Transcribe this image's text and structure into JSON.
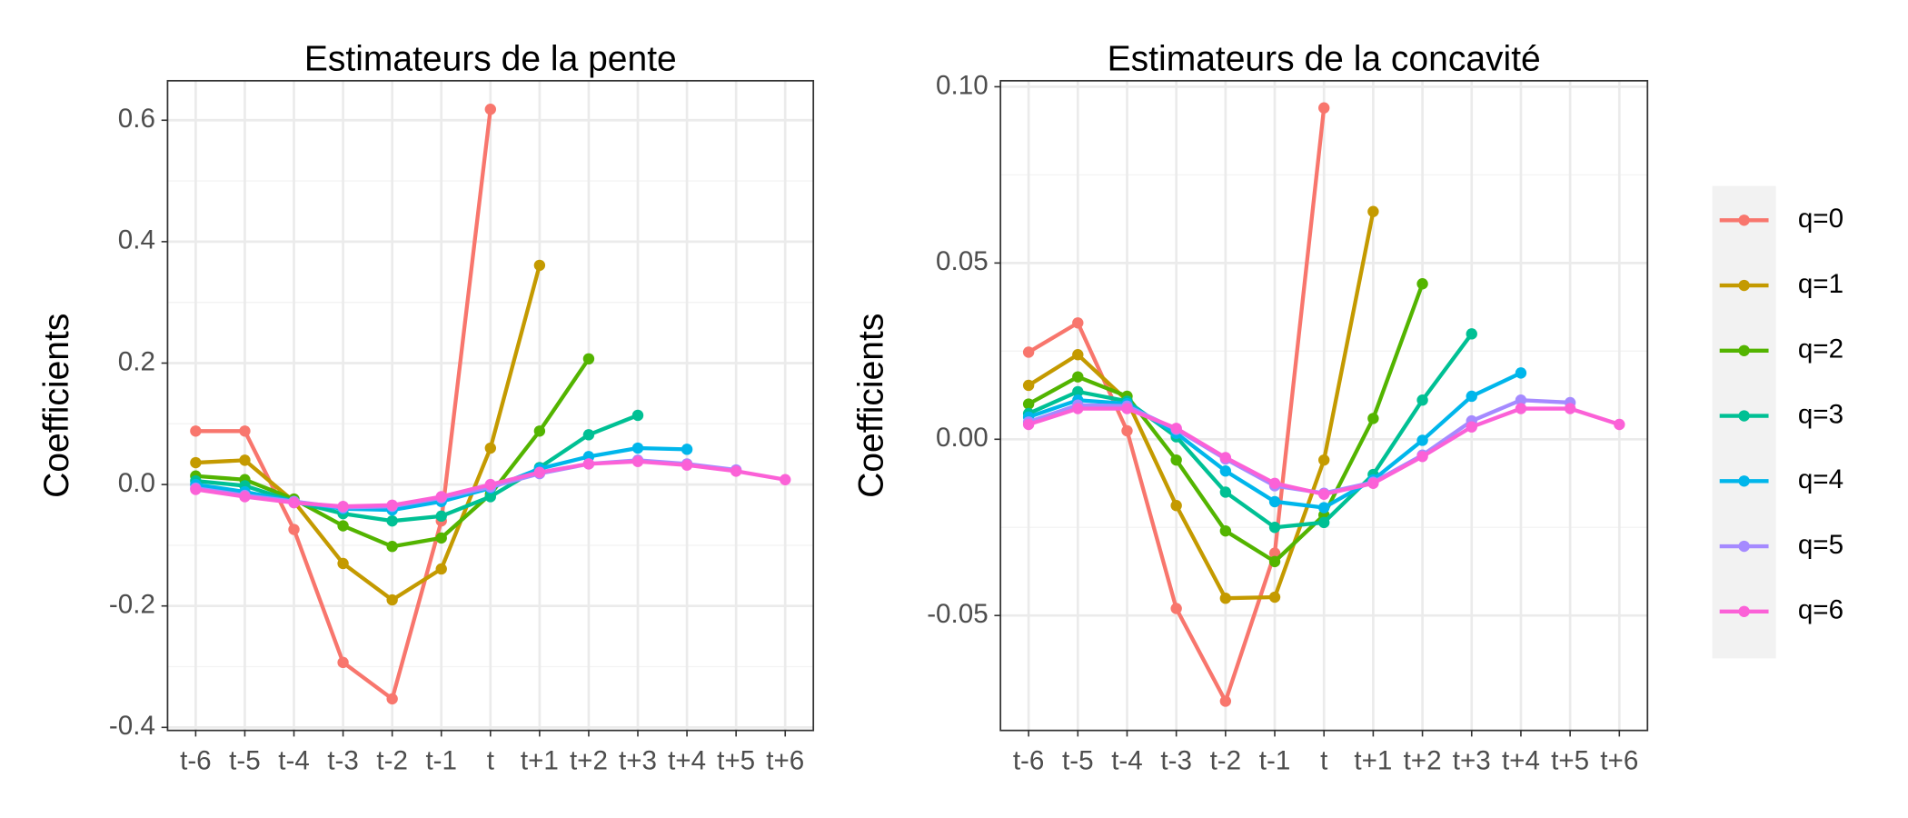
{
  "chart_data": [
    {
      "type": "line",
      "title": "Estimateurs de la pente",
      "y_label": "Coefficients",
      "categories": [
        "t-6",
        "t-5",
        "t-4",
        "t-3",
        "t-2",
        "t-1",
        "t",
        "t+1",
        "t+2",
        "t+3",
        "t+4",
        "t+5",
        "t+6"
      ],
      "ylim": [
        -0.405,
        0.665
      ],
      "yticks": [
        -0.4,
        -0.2,
        {
          "value": 0,
          "label": "0.0"
        },
        0.2,
        0.4,
        0.6
      ],
      "grid": true,
      "series": [
        {
          "values": [
            0.088,
            0.088,
            -0.074,
            -0.293,
            -0.353,
            -0.06,
            0.618,
            null,
            null,
            null,
            null,
            null,
            null
          ]
        },
        {
          "values": [
            0.036,
            0.04,
            -0.028,
            -0.13,
            -0.19,
            -0.139,
            0.06,
            0.361,
            null,
            null,
            null,
            null,
            null
          ]
        },
        {
          "values": [
            0.014,
            0.008,
            -0.024,
            -0.068,
            -0.102,
            -0.088,
            -0.016,
            0.088,
            0.207,
            null,
            null,
            null,
            null
          ]
        },
        {
          "values": [
            0.006,
            -0.002,
            -0.028,
            -0.048,
            -0.06,
            -0.052,
            -0.02,
            0.028,
            0.082,
            0.114,
            null,
            null,
            null
          ]
        },
        {
          "values": [
            0,
            -0.012,
            -0.028,
            -0.04,
            -0.042,
            -0.028,
            -0.006,
            0.026,
            0.046,
            0.06,
            0.058,
            null,
            null
          ]
        },
        {
          "values": [
            -0.006,
            -0.018,
            -0.028,
            -0.038,
            -0.036,
            -0.022,
            -0.004,
            0.018,
            0.034,
            0.04,
            0.034,
            0.024,
            null
          ]
        },
        {
          "values": [
            -0.008,
            -0.02,
            -0.03,
            -0.036,
            -0.034,
            -0.02,
            0,
            0.02,
            0.034,
            0.038,
            0.032,
            0.022,
            0.008
          ]
        }
      ]
    },
    {
      "type": "line",
      "title": "Estimateurs de la concavité",
      "y_label": "Coefficients",
      "categories": [
        "t-6",
        "t-5",
        "t-4",
        "t-3",
        "t-2",
        "t-1",
        "t",
        "t+1",
        "t+2",
        "t+3",
        "t+4",
        "t+5",
        "t+6"
      ],
      "ylim": [
        -0.0826,
        0.1017
      ],
      "yticks": [
        -0.05,
        {
          "value": 0,
          "label": "0.00"
        },
        0.05,
        {
          "value": 0.1,
          "label": "0.10"
        }
      ],
      "grid": true,
      "series": [
        {
          "values": [
            0.0247,
            0.033,
            0.0024,
            -0.048,
            -0.0743,
            -0.0323,
            0.094,
            null,
            null,
            null,
            null,
            null,
            null
          ]
        },
        {
          "values": [
            0.0153,
            0.024,
            0.011,
            -0.0188,
            -0.0451,
            -0.0448,
            -0.0059,
            0.0646,
            null,
            null,
            null,
            null,
            null
          ]
        },
        {
          "values": [
            0.01,
            0.0177,
            0.0122,
            -0.0059,
            -0.026,
            -0.0347,
            -0.0215,
            0.0059,
            0.0441,
            null,
            null,
            null,
            null
          ]
        },
        {
          "values": [
            0.0073,
            0.0135,
            0.0108,
            0.0007,
            -0.015,
            -0.025,
            -0.0236,
            -0.01,
            0.0111,
            0.0299,
            null,
            null,
            null
          ]
        },
        {
          "values": [
            0.0063,
            0.0111,
            0.0101,
            0.0017,
            -0.009,
            -0.0177,
            -0.0194,
            -0.0115,
            -0.0003,
            0.0122,
            0.0188,
            null,
            null
          ]
        },
        {
          "values": [
            0.0049,
            0.0097,
            0.0094,
            0.0028,
            -0.0056,
            -0.0132,
            -0.0153,
            -0.0122,
            -0.0045,
            0.0052,
            0.0111,
            0.0104,
            null
          ]
        },
        {
          "values": [
            0.0042,
            0.0087,
            0.0087,
            0.0031,
            -0.0052,
            -0.0125,
            -0.0156,
            -0.0125,
            -0.0049,
            0.0035,
            0.0087,
            0.0087,
            0.0042
          ]
        }
      ]
    }
  ],
  "legend": {
    "position": "right",
    "items": [
      {
        "name": "q=0",
        "color": "#f8766d"
      },
      {
        "name": "q=1",
        "color": "#c49a00"
      },
      {
        "name": "q=2",
        "color": "#53b400"
      },
      {
        "name": "q=3",
        "color": "#00c094"
      },
      {
        "name": "q=4",
        "color": "#00b6eb"
      },
      {
        "name": "q=5",
        "color": "#a58aff"
      },
      {
        "name": "q=6",
        "color": "#fb61d7"
      }
    ]
  }
}
